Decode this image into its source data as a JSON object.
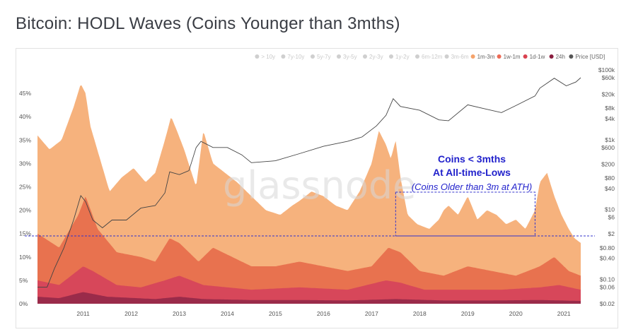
{
  "title": "Bitcoin: HODL Waves (Coins Younger than 3mths)",
  "watermark": "glassnode",
  "chart_data": {
    "type": "area",
    "title": "Bitcoin: HODL Waves (Coins Younger than 3mths)",
    "x_range": [
      2010.55,
      2021.85
    ],
    "x_ticks": [
      "2011",
      "2012",
      "2013",
      "2014",
      "2015",
      "2016",
      "2017",
      "2018",
      "2019",
      "2020",
      "2021"
    ],
    "left_axis": {
      "ticks": [
        "0%",
        "5%",
        "10%",
        "15%",
        "20%",
        "25%",
        "30%",
        "35%",
        "40%",
        "45%"
      ],
      "ylim": [
        0,
        50
      ]
    },
    "right_axis": {
      "scale": "log",
      "ticks": [
        "$0.02",
        "$0.06",
        "$0.10",
        "$0.40",
        "$0.80",
        "$2",
        "$6",
        "$10",
        "$40",
        "$80",
        "$200",
        "$600",
        "$1k",
        "$4k",
        "$8k",
        "$20k",
        "$60k",
        "$100k"
      ],
      "ylim": [
        0.02,
        100000
      ]
    },
    "legend": [
      {
        "label": "> 10y",
        "color": "#4b3d8f",
        "active": false
      },
      {
        "label": "7y-10y",
        "color": "#3a6fb0",
        "active": false
      },
      {
        "label": "5y-7y",
        "color": "#2d9a8a",
        "active": false
      },
      {
        "label": "3y-5y",
        "color": "#5cb85c",
        "active": false
      },
      {
        "label": "2y-3y",
        "color": "#a8cf5a",
        "active": false
      },
      {
        "label": "1y-2y",
        "color": "#e8e36a",
        "active": false
      },
      {
        "label": "6m-12m",
        "color": "#f6d37a",
        "active": false
      },
      {
        "label": "3m-6m",
        "color": "#f7b97a",
        "active": false
      },
      {
        "label": "1m-3m",
        "color": "#f5a36b",
        "active": true
      },
      {
        "label": "1w-1m",
        "color": "#ec6a55",
        "active": true
      },
      {
        "label": "1d-1w",
        "color": "#d9414f",
        "active": true
      },
      {
        "label": "24h",
        "color": "#8a1d3f",
        "active": true
      },
      {
        "label": "Price [USD]",
        "color": "#555555",
        "active": true
      }
    ],
    "series": [
      {
        "name": "1m-3m",
        "color": "#f6b27d",
        "x": [
          2010.55,
          2010.8,
          2011.05,
          2011.3,
          2011.45,
          2011.55,
          2011.65,
          2011.85,
          2012.05,
          2012.3,
          2012.55,
          2012.8,
          2013.0,
          2013.2,
          2013.33,
          2013.45,
          2013.6,
          2013.85,
          2014.0,
          2014.2,
          2014.45,
          2014.7,
          2015.0,
          2015.3,
          2015.6,
          2015.85,
          2016.0,
          2016.25,
          2016.5,
          2016.75,
          2017.0,
          2017.25,
          2017.5,
          2017.65,
          2017.8,
          2017.9,
          2018.0,
          2018.1,
          2018.25,
          2018.45,
          2018.7,
          2018.9,
          2019.0,
          2019.1,
          2019.3,
          2019.5,
          2019.7,
          2019.9,
          2020.1,
          2020.3,
          2020.5,
          2020.7,
          2020.9,
          2021.0,
          2021.15,
          2021.3,
          2021.45,
          2021.6,
          2021.72,
          2021.85
        ],
        "values": [
          36,
          33,
          35,
          42,
          47,
          45,
          38,
          31,
          24,
          27,
          29,
          26,
          28,
          35,
          40,
          37,
          33,
          25,
          37,
          30,
          28,
          26,
          23,
          20,
          19,
          21,
          22,
          24,
          23,
          21,
          20,
          24,
          30,
          37,
          34,
          31,
          35,
          27,
          19,
          17,
          16,
          18,
          20,
          21,
          19,
          23,
          18,
          20,
          19,
          17,
          18,
          16,
          20,
          26,
          28,
          23,
          19,
          16,
          14,
          13
        ]
      },
      {
        "name": "1w-1m",
        "color": "#e8724f",
        "x": [
          2010.55,
          2011.0,
          2011.4,
          2011.55,
          2011.8,
          2012.2,
          2012.7,
          2013.0,
          2013.3,
          2013.5,
          2013.9,
          2014.2,
          2014.6,
          2015.0,
          2015.5,
          2016.0,
          2016.5,
          2017.0,
          2017.5,
          2017.85,
          2018.1,
          2018.5,
          2019.0,
          2019.5,
          2020.0,
          2020.5,
          2021.0,
          2021.3,
          2021.6,
          2021.85
        ],
        "values": [
          15,
          12,
          19,
          23,
          16,
          11,
          10,
          9,
          14,
          13,
          9,
          12,
          10,
          8,
          8,
          9,
          8,
          7,
          8,
          12,
          11,
          7,
          6,
          8,
          7,
          6,
          8,
          10,
          7,
          6
        ]
      },
      {
        "name": "1d-1w",
        "color": "#d7475a",
        "x": [
          2010.55,
          2011.0,
          2011.5,
          2011.7,
          2012.2,
          2012.7,
          2013.2,
          2013.5,
          2014.0,
          2014.5,
          2015.0,
          2016.0,
          2017.0,
          2017.8,
          2018.1,
          2018.6,
          2019.5,
          2020.2,
          2021.0,
          2021.4,
          2021.85
        ],
        "values": [
          5,
          4,
          8,
          7,
          4,
          3.5,
          5,
          6,
          4,
          3.5,
          3,
          3.5,
          3,
          5,
          4.5,
          3,
          3,
          3,
          3.5,
          4,
          3
        ]
      },
      {
        "name": "24h",
        "color": "#9a2b4a",
        "x": [
          2010.55,
          2011.0,
          2011.5,
          2012.0,
          2013.0,
          2013.5,
          2014.0,
          2015.0,
          2016.0,
          2017.0,
          2018.0,
          2019.0,
          2020.0,
          2021.0,
          2021.85
        ],
        "values": [
          1.5,
          1.2,
          2.5,
          1.5,
          1,
          1.5,
          1,
          0.8,
          0.8,
          0.7,
          1,
          0.7,
          0.7,
          0.8,
          0.6
        ]
      },
      {
        "name": "Price [USD]",
        "color": "#444444",
        "axis": "right",
        "x": [
          2010.55,
          2010.75,
          2010.9,
          2011.1,
          2011.3,
          2011.45,
          2011.55,
          2011.7,
          2011.9,
          2012.1,
          2012.4,
          2012.7,
          2013.0,
          2013.2,
          2013.3,
          2013.5,
          2013.7,
          2013.85,
          2013.95,
          2014.2,
          2014.5,
          2014.8,
          2015.0,
          2015.5,
          2016.0,
          2016.5,
          2017.0,
          2017.3,
          2017.6,
          2017.8,
          2017.95,
          2018.1,
          2018.5,
          2018.9,
          2019.1,
          2019.5,
          2019.8,
          2020.2,
          2020.5,
          2020.9,
          2021.0,
          2021.3,
          2021.55,
          2021.75,
          2021.85
        ],
        "values": [
          0.06,
          0.06,
          0.2,
          0.8,
          5,
          25,
          17,
          5,
          3,
          5,
          5,
          11,
          13,
          30,
          120,
          100,
          130,
          600,
          900,
          600,
          600,
          370,
          220,
          250,
          400,
          650,
          900,
          1200,
          2500,
          5000,
          15000,
          9000,
          7000,
          3700,
          3500,
          10000,
          8000,
          6000,
          9500,
          18000,
          30000,
          58000,
          35000,
          45000,
          60000
        ]
      }
    ],
    "annotations": {
      "line1": "Coins < 3mths",
      "line2": "At All-time-Lows",
      "line3": "(Coins Older than 3m at ATH)",
      "reference_level": 14.5,
      "box_x_range": [
        2018.0,
        2020.9
      ]
    }
  }
}
